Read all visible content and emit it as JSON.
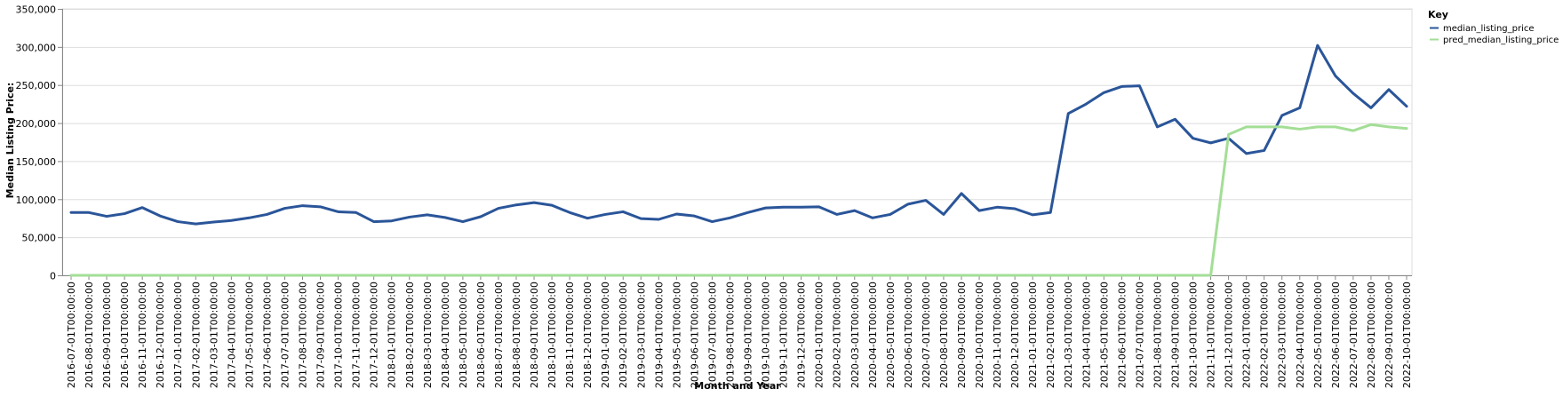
{
  "chart_data": {
    "type": "line",
    "xlabel": "Month and Year",
    "ylabel": "Median Listing Price:",
    "ylim": [
      0,
      350000
    ],
    "yticks": [
      0,
      50000,
      100000,
      150000,
      200000,
      250000,
      300000,
      350000
    ],
    "ytick_labels": [
      "0",
      "50,000",
      "100,000",
      "150,000",
      "200,000",
      "250,000",
      "300,000",
      "350,000"
    ],
    "grid": true,
    "legend": {
      "title": "Key",
      "position": "top-right"
    },
    "x": [
      "2016-07-01T00:00:00",
      "2016-08-01T00:00:00",
      "2016-09-01T00:00:00",
      "2016-10-01T00:00:00",
      "2016-11-01T00:00:00",
      "2016-12-01T00:00:00",
      "2017-01-01T00:00:00",
      "2017-02-01T00:00:00",
      "2017-03-01T00:00:00",
      "2017-04-01T00:00:00",
      "2017-05-01T00:00:00",
      "2017-06-01T00:00:00",
      "2017-07-01T00:00:00",
      "2017-08-01T00:00:00",
      "2017-09-01T00:00:00",
      "2017-10-01T00:00:00",
      "2017-11-01T00:00:00",
      "2017-12-01T00:00:00",
      "2018-01-01T00:00:00",
      "2018-02-01T00:00:00",
      "2018-03-01T00:00:00",
      "2018-04-01T00:00:00",
      "2018-05-01T00:00:00",
      "2018-06-01T00:00:00",
      "2018-07-01T00:00:00",
      "2018-08-01T00:00:00",
      "2018-09-01T00:00:00",
      "2018-10-01T00:00:00",
      "2018-11-01T00:00:00",
      "2018-12-01T00:00:00",
      "2019-01-01T00:00:00",
      "2019-02-01T00:00:00",
      "2019-03-01T00:00:00",
      "2019-04-01T00:00:00",
      "2019-05-01T00:00:00",
      "2019-06-01T00:00:00",
      "2019-07-01T00:00:00",
      "2019-08-01T00:00:00",
      "2019-09-01T00:00:00",
      "2019-10-01T00:00:00",
      "2019-11-01T00:00:00",
      "2019-12-01T00:00:00",
      "2020-01-01T00:00:00",
      "2020-02-01T00:00:00",
      "2020-03-01T00:00:00",
      "2020-04-01T00:00:00",
      "2020-05-01T00:00:00",
      "2020-06-01T00:00:00",
      "2020-07-01T00:00:00",
      "2020-08-01T00:00:00",
      "2020-09-01T00:00:00",
      "2020-10-01T00:00:00",
      "2020-11-01T00:00:00",
      "2020-12-01T00:00:00",
      "2021-01-01T00:00:00",
      "2021-02-01T00:00:00",
      "2021-03-01T00:00:00",
      "2021-04-01T00:00:00",
      "2021-05-01T00:00:00",
      "2021-06-01T00:00:00",
      "2021-07-01T00:00:00",
      "2021-08-01T00:00:00",
      "2021-09-01T00:00:00",
      "2021-10-01T00:00:00",
      "2021-11-01T00:00:00",
      "2021-12-01T00:00:00",
      "2022-01-01T00:00:00",
      "2022-02-01T00:00:00",
      "2022-03-01T00:00:00",
      "2022-04-01T00:00:00",
      "2022-05-01T00:00:00",
      "2022-06-01T00:00:00",
      "2022-07-01T00:00:00",
      "2022-08-01T00:00:00",
      "2022-09-01T00:00:00",
      "2022-10-01T00:00:00"
    ],
    "series": [
      {
        "name": "median_listing_price",
        "color": "#2a5599",
        "values": [
          82500,
          82500,
          77500,
          81000,
          89000,
          78000,
          70500,
          67500,
          70000,
          72000,
          75500,
          80000,
          88000,
          91500,
          90000,
          83500,
          82500,
          70500,
          71500,
          76500,
          79500,
          76000,
          70500,
          77000,
          88000,
          92500,
          95500,
          92000,
          82500,
          75000,
          80000,
          83500,
          74500,
          73500,
          80500,
          78000,
          70500,
          75500,
          82500,
          88500,
          89500,
          89500,
          90000,
          80000,
          85000,
          75500,
          80000,
          93500,
          98500,
          80000,
          107500,
          85000,
          89500,
          87500,
          79500,
          82500,
          212500,
          225000,
          240000,
          248000,
          249000,
          195000,
          205000,
          180000,
          174000,
          180000,
          160000,
          164000,
          210000,
          220000,
          302000,
          262000,
          239000,
          220000,
          244000,
          222000
        ]
      },
      {
        "name": "pred_median_listing_price",
        "color": "#a3de96",
        "values": [
          0,
          0,
          0,
          0,
          0,
          0,
          0,
          0,
          0,
          0,
          0,
          0,
          0,
          0,
          0,
          0,
          0,
          0,
          0,
          0,
          0,
          0,
          0,
          0,
          0,
          0,
          0,
          0,
          0,
          0,
          0,
          0,
          0,
          0,
          0,
          0,
          0,
          0,
          0,
          0,
          0,
          0,
          0,
          0,
          0,
          0,
          0,
          0,
          0,
          0,
          0,
          0,
          0,
          0,
          0,
          0,
          0,
          0,
          0,
          0,
          0,
          0,
          0,
          0,
          0,
          185000,
          195000,
          195000,
          195000,
          192000,
          195000,
          195000,
          190000,
          198000,
          195000,
          193000
        ]
      }
    ]
  }
}
